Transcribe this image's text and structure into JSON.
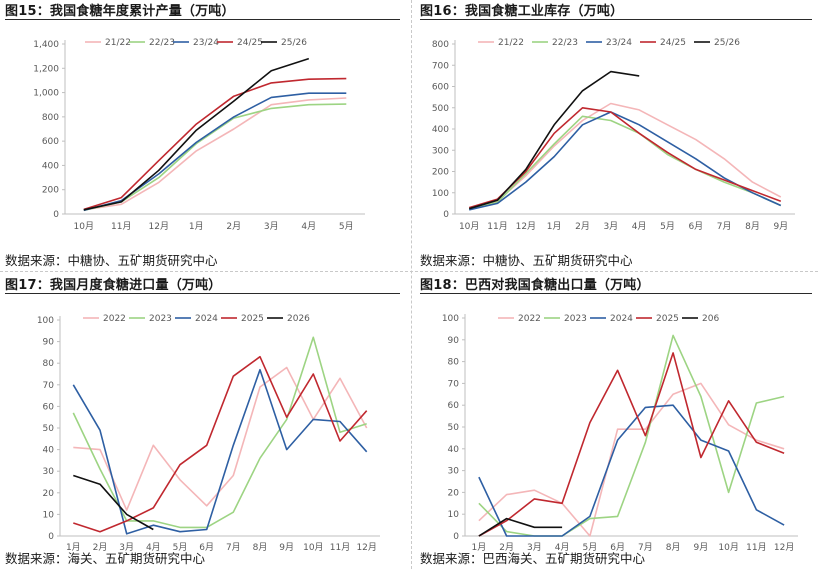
{
  "chart_data": [
    {
      "type": "line",
      "title": "图15：我国食糖年度累计产量（万吨）",
      "source": "数据来源：中糖协、五矿期货研究中心",
      "categories": [
        "10月",
        "11月",
        "12月",
        "1月",
        "2月",
        "3月",
        "4月",
        "5月"
      ],
      "yticks": [
        "0",
        "200",
        "400",
        "600",
        "800",
        "1,000",
        "1,200",
        "1,400"
      ],
      "ylim": [
        0,
        1400
      ],
      "legend_position": "top",
      "series": [
        {
          "name": "21/22",
          "color": "#f4b6b8",
          "values": [
            35,
            80,
            260,
            520,
            700,
            900,
            940,
            955
          ]
        },
        {
          "name": "22/23",
          "color": "#9dd483",
          "values": [
            30,
            100,
            300,
            580,
            790,
            870,
            900,
            905
          ]
        },
        {
          "name": "23/24",
          "color": "#2e5fa3",
          "values": [
            30,
            110,
            330,
            590,
            800,
            960,
            995,
            995
          ]
        },
        {
          "name": "24/25",
          "color": "#c0282f",
          "values": [
            38,
            135,
            440,
            740,
            970,
            1080,
            1110,
            1115
          ]
        },
        {
          "name": "25/26",
          "color": "#111111",
          "values": [
            35,
            100,
            360,
            690,
            930,
            1180,
            1280,
            null
          ]
        }
      ]
    },
    {
      "type": "line",
      "title": "图16：我国食糖工业库存（万吨）",
      "source": "数据来源：中糖协、五矿期货研究中心",
      "categories": [
        "10月",
        "11月",
        "12月",
        "1月",
        "2月",
        "3月",
        "4月",
        "5月",
        "6月",
        "7月",
        "8月",
        "9月"
      ],
      "yticks": [
        "0",
        "100",
        "200",
        "300",
        "400",
        "500",
        "600",
        "700",
        "800"
      ],
      "ylim": [
        0,
        800
      ],
      "legend_position": "top",
      "series": [
        {
          "name": "21/22",
          "color": "#f4b6b8",
          "values": [
            30,
            60,
            180,
            320,
            440,
            520,
            490,
            420,
            350,
            260,
            150,
            80
          ]
        },
        {
          "name": "22/23",
          "color": "#9dd483",
          "values": [
            25,
            55,
            190,
            330,
            460,
            440,
            380,
            280,
            210,
            150,
            100,
            40
          ]
        },
        {
          "name": "23/24",
          "color": "#2e5fa3",
          "values": [
            20,
            50,
            150,
            270,
            420,
            480,
            420,
            340,
            260,
            170,
            100,
            40
          ]
        },
        {
          "name": "24/25",
          "color": "#c0282f",
          "values": [
            30,
            70,
            200,
            380,
            500,
            480,
            380,
            290,
            210,
            160,
            110,
            60
          ]
        },
        {
          "name": "25/26",
          "color": "#111111",
          "values": [
            25,
            65,
            210,
            420,
            580,
            670,
            650,
            null,
            null,
            null,
            null,
            null
          ]
        }
      ]
    },
    {
      "type": "line",
      "title": "图17：我国月度食糖进口量（万吨）",
      "source": "数据来源：海关、五矿期货研究中心",
      "categories": [
        "1月",
        "2月",
        "3月",
        "4月",
        "5月",
        "6月",
        "7月",
        "8月",
        "9月",
        "10月",
        "11月",
        "12月"
      ],
      "yticks": [
        "0",
        "10",
        "20",
        "30",
        "40",
        "50",
        "60",
        "70",
        "80",
        "90",
        "100"
      ],
      "ylim": [
        0,
        100
      ],
      "legend_position": "top",
      "series": [
        {
          "name": "2022",
          "color": "#f4b6b8",
          "values": [
            41,
            40,
            12,
            42,
            26,
            14,
            28,
            69,
            78,
            54,
            73,
            50
          ]
        },
        {
          "name": "2023",
          "color": "#9dd483",
          "values": [
            57,
            31,
            7,
            7,
            4,
            4,
            11,
            36,
            54,
            92,
            48,
            52
          ]
        },
        {
          "name": "2024",
          "color": "#2e5fa3",
          "values": [
            70,
            49,
            1,
            5,
            2,
            3,
            42,
            77,
            40,
            54,
            53,
            39
          ]
        },
        {
          "name": "2025",
          "color": "#c0282f",
          "values": [
            6,
            2,
            7,
            13,
            33,
            42,
            74,
            83,
            55,
            75,
            44,
            58
          ]
        },
        {
          "name": "2026",
          "color": "#111111",
          "values": [
            28,
            24,
            10,
            3,
            null,
            null,
            null,
            null,
            null,
            null,
            null,
            null
          ]
        }
      ]
    },
    {
      "type": "line",
      "title": "图18：巴西对我国食糖出口量（万吨）",
      "source": "数据来源：巴西海关、五矿期货研究中心",
      "categories": [
        "1月",
        "2月",
        "3月",
        "4月",
        "5月",
        "6月",
        "7月",
        "8月",
        "9月",
        "10月",
        "11月",
        "12月"
      ],
      "yticks": [
        "0",
        "10",
        "20",
        "30",
        "40",
        "50",
        "60",
        "70",
        "80",
        "90",
        "100"
      ],
      "ylim": [
        0,
        100
      ],
      "legend_position": "top",
      "series": [
        {
          "name": "2022",
          "color": "#f4b6b8",
          "values": [
            7,
            19,
            21,
            15,
            0,
            49,
            49,
            65,
            70,
            51,
            44,
            40
          ]
        },
        {
          "name": "2023",
          "color": "#9dd483",
          "values": [
            15,
            2,
            0,
            0,
            8,
            9,
            43,
            92,
            64,
            20,
            61,
            64
          ]
        },
        {
          "name": "2024",
          "color": "#2e5fa3",
          "values": [
            27,
            0,
            0,
            0,
            9,
            44,
            59,
            60,
            44,
            39,
            12,
            5
          ]
        },
        {
          "name": "2025",
          "color": "#c0282f",
          "values": [
            0,
            7,
            17,
            15,
            52,
            76,
            46,
            84,
            36,
            62,
            43,
            38
          ]
        },
        {
          "name": "206",
          "color": "#111111",
          "values": [
            0,
            8,
            4,
            4,
            null,
            null,
            null,
            null,
            null,
            null,
            null,
            null
          ]
        }
      ]
    }
  ]
}
